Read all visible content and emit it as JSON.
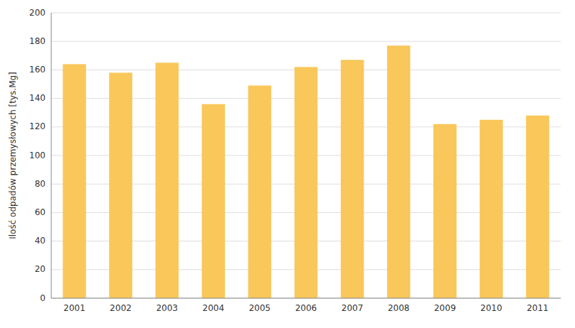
{
  "chart_data": {
    "type": "bar",
    "categories": [
      "2001",
      "2002",
      "2003",
      "2004",
      "2005",
      "2006",
      "2007",
      "2008",
      "2009",
      "2010",
      "2011"
    ],
    "values": [
      164,
      158,
      165,
      136,
      149,
      162,
      167,
      177,
      122,
      125,
      128
    ],
    "color": "#F9C75A",
    "ylabel": "Ilość odpadów przemysłowych [tys.Mg]",
    "ylim": [
      0,
      200
    ],
    "yticks": [
      0,
      20,
      40,
      60,
      80,
      100,
      120,
      140,
      160,
      180,
      200
    ],
    "grid": true
  }
}
